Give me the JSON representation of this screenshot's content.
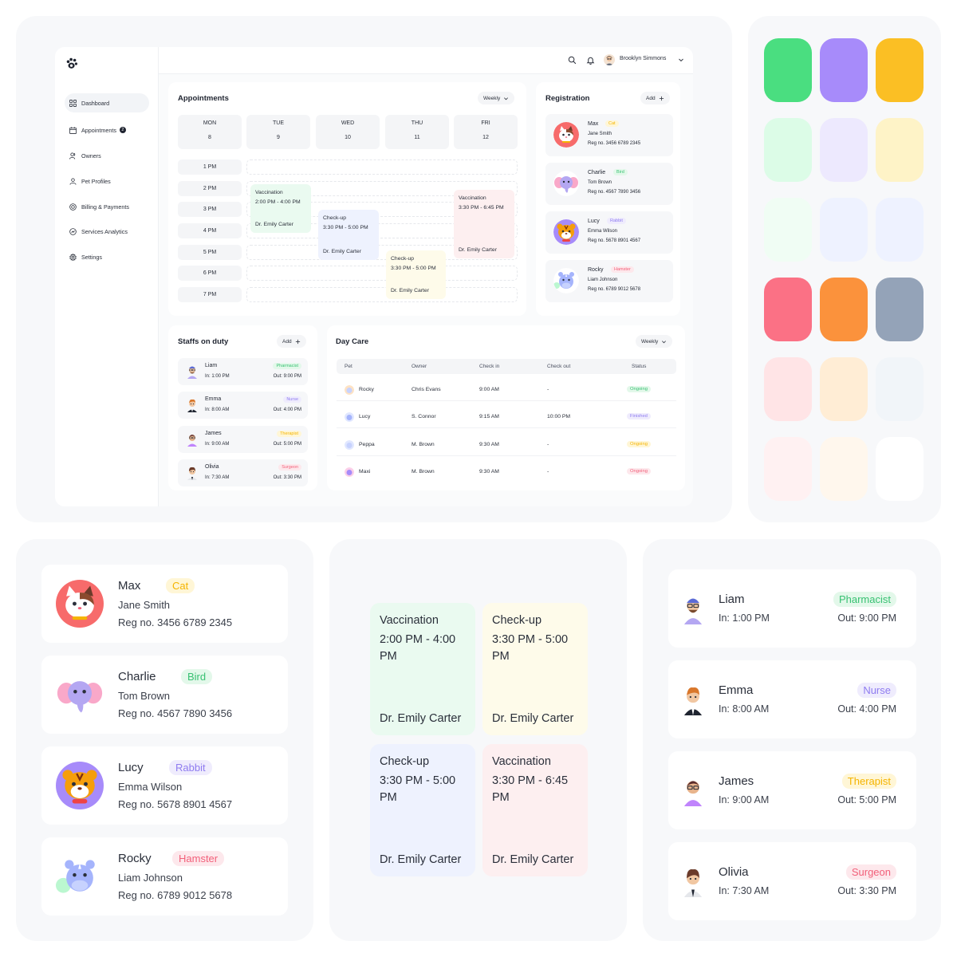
{
  "app": {
    "user_name": "Brooklyn Simmons"
  },
  "sidebar": {
    "items": [
      {
        "label": "Dashboard",
        "icon": "grid-icon"
      },
      {
        "label": "Appointments",
        "icon": "calendar-icon",
        "badge": "2"
      },
      {
        "label": "Owners",
        "icon": "users-icon"
      },
      {
        "label": "Pet Profiles",
        "icon": "user-icon"
      },
      {
        "label": "Billing & Payments",
        "icon": "coin-icon"
      },
      {
        "label": "Services Analytics",
        "icon": "analytics-icon"
      },
      {
        "label": "Settings",
        "icon": "gear-icon"
      }
    ]
  },
  "appointments": {
    "title": "Appointments",
    "range": "Weekly",
    "days": [
      {
        "name": "MON",
        "date": "8"
      },
      {
        "name": "TUE",
        "date": "9"
      },
      {
        "name": "WED",
        "date": "10"
      },
      {
        "name": "THU",
        "date": "11"
      },
      {
        "name": "FRI",
        "date": "12"
      }
    ],
    "times": [
      "1 PM",
      "2 PM",
      "3 PM",
      "4 PM",
      "5 PM",
      "6 PM",
      "7 PM"
    ],
    "events": [
      {
        "title": "Vaccination",
        "time": "2:00 PM - 4:00 PM",
        "doctor": "Dr. Emily Carter",
        "color": "#eafaf0"
      },
      {
        "title": "Check-up",
        "time": "3:30 PM - 5:00 PM",
        "doctor": "Dr. Emily Carter",
        "color": "#eef2fe"
      },
      {
        "title": "Check-up",
        "time": "3:30 PM - 5:00 PM",
        "doctor": "Dr. Emily Carter",
        "color": "#fefbea"
      },
      {
        "title": "Vaccination",
        "time": "3:30 PM - 6:45 PM",
        "doctor": "Dr. Emily Carter",
        "color": "#fdeff0"
      }
    ]
  },
  "registration": {
    "title": "Registration",
    "add_label": "Add",
    "pets": [
      {
        "name": "Max",
        "tag": "Cat",
        "owner": "Jane Smith",
        "reg": "Reg no. 3456 6789 2345",
        "tag_color": "#f5b400",
        "tag_bg": "#fff6d6"
      },
      {
        "name": "Charlie",
        "tag": "Bird",
        "owner": "Tom Brown",
        "reg": "Reg no. 4567 7890 3456",
        "tag_color": "#38c172",
        "tag_bg": "#e3f8ea"
      },
      {
        "name": "Lucy",
        "tag": "Rabbit",
        "owner": "Emma Wilson",
        "reg": "Reg no. 5678 8901 4567",
        "tag_color": "#8f7cf0",
        "tag_bg": "#efecfd"
      },
      {
        "name": "Rocky",
        "tag": "Hamster",
        "owner": "Liam Johnson",
        "reg": "Reg no. 6789 9012 5678",
        "tag_color": "#f2607a",
        "tag_bg": "#fde8ec"
      }
    ]
  },
  "staff": {
    "title": "Staffs on duty",
    "add_label": "Add",
    "members": [
      {
        "name": "Liam",
        "role": "Pharmacist",
        "in": "In: 1:00 PM",
        "out": "Out: 9:00 PM",
        "role_color": "#38c172",
        "role_bg": "#e3f8ea"
      },
      {
        "name": "Emma",
        "role": "Nurse",
        "in": "In: 8:00 AM",
        "out": "Out: 4:00 PM",
        "role_color": "#8f7cf0",
        "role_bg": "#efecfd"
      },
      {
        "name": "James",
        "role": "Therapist",
        "in": "In: 9:00 AM",
        "out": "Out: 5:00 PM",
        "role_color": "#f5b400",
        "role_bg": "#fff6d6"
      },
      {
        "name": "Olivia",
        "role": "Surgeon",
        "in": "In: 7:30 AM",
        "out": "Out: 3:30 PM",
        "role_color": "#f2607a",
        "role_bg": "#fde8ec"
      }
    ]
  },
  "daycare": {
    "title": "Day Care",
    "range": "Weekly",
    "columns": [
      "Pet",
      "Owner",
      "Check in",
      "Check out",
      "Status"
    ],
    "rows": [
      {
        "pet": "Rocky",
        "owner": "Chris Evans",
        "check_in": "9:00 AM",
        "check_out": "-",
        "status": "Ongoing",
        "status_color": "#38c172",
        "status_bg": "#e3f8ea"
      },
      {
        "pet": "Lucy",
        "owner": "S. Connor",
        "check_in": "9:15 AM",
        "check_out": "10:00 PM",
        "status": "Finished",
        "status_color": "#8f7cf0",
        "status_bg": "#efecfd"
      },
      {
        "pet": "Peppa",
        "owner": "M. Brown",
        "check_in": "9:30 AM",
        "check_out": "-",
        "status": "Ongoing",
        "status_color": "#f5b400",
        "status_bg": "#fff6d6"
      },
      {
        "pet": "Maxi",
        "owner": "M. Brown",
        "check_in": "9:30 AM",
        "check_out": "-",
        "status": "Ongoing",
        "status_color": "#f2607a",
        "status_bg": "#fde8ec"
      }
    ]
  },
  "palette": [
    "#4ade80",
    "#a78bfa",
    "#fbbf24",
    "#dcfce7",
    "#ede9fe",
    "#fef3c7",
    "#f0fdf4",
    "#eef2ff",
    "#eef2ff",
    "#fb7185",
    "#fb923c",
    "#94a3b8",
    "#ffe4e6",
    "#ffedd5",
    "#f1f5f9",
    "#fff1f2",
    "#fff7ed",
    "#ffffff"
  ]
}
